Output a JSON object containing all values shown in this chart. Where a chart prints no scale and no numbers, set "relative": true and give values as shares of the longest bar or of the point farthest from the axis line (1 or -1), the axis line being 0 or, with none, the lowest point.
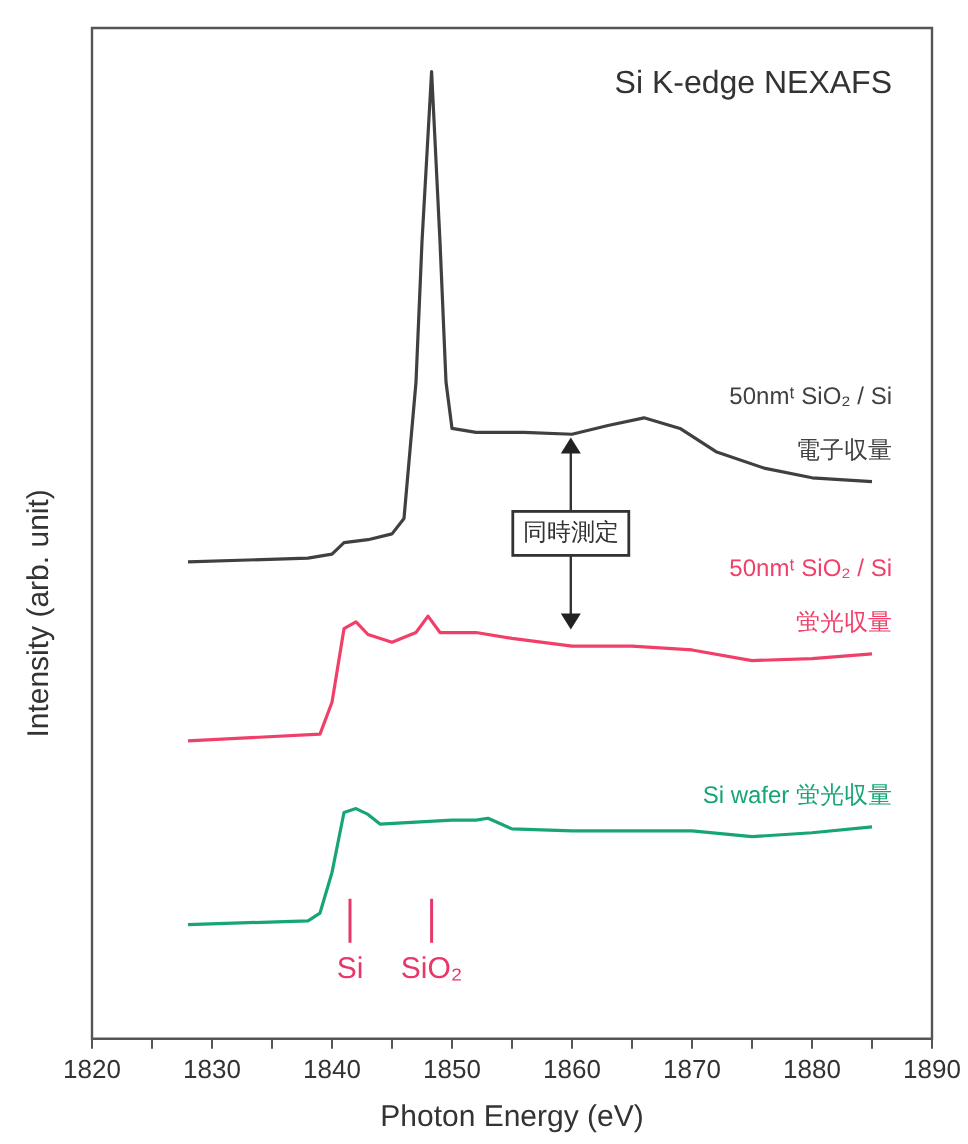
{
  "chart_data": {
    "type": "line",
    "relative": true,
    "title": "Si K-edge NEXAFS",
    "xlabel": "Photon Energy (eV)",
    "ylabel": "Intensity (arb. unit)",
    "xlim": [
      1820,
      1890
    ],
    "xticks": [
      1820,
      {
        "value": 1825,
        "label": null
      },
      1830,
      {
        "value": 1835,
        "label": null
      },
      1840,
      {
        "value": 1845,
        "label": null
      },
      1850,
      {
        "value": 1855,
        "label": null
      },
      1860,
      {
        "value": 1865,
        "label": null
      },
      1870,
      {
        "value": 1875,
        "label": null
      },
      1880,
      {
        "value": 1885,
        "label": null
      },
      1890
    ],
    "grid": false,
    "legend": false,
    "marker": "none",
    "line_style": "solid",
    "annotations": [
      "同時測定"
    ],
    "ref_lines": [
      {
        "axis": "x",
        "value": 1841.5,
        "label": "Si",
        "color": "#e8386a"
      },
      {
        "axis": "x",
        "value": 1848.3,
        "label": "SiO₂",
        "color": "#e8386a"
      }
    ],
    "series": [
      {
        "name": "50nmᵗ SiO₂ / Si\n電子収量",
        "color": "#404040",
        "x": [
          1828,
          1838,
          1840,
          1841,
          1843,
          1845,
          1846,
          1847,
          1847.5,
          1848.3,
          1849,
          1849.5,
          1850,
          1852,
          1856,
          1860,
          1863,
          1866,
          1869,
          1872,
          1876,
          1880,
          1885
        ],
        "values": [
          0.493,
          0.497,
          0.501,
          0.513,
          0.516,
          0.522,
          0.538,
          0.679,
          0.824,
          1.0,
          0.824,
          0.679,
          0.631,
          0.627,
          0.627,
          0.625,
          0.634,
          0.642,
          0.631,
          0.607,
          0.59,
          0.58,
          0.576
        ]
      },
      {
        "name": "50nmᵗ SiO₂ / Si\n蛍光収量",
        "color": "#f0406a",
        "x": [
          1828,
          1839,
          1840,
          1841,
          1842,
          1843,
          1845,
          1847,
          1848,
          1849,
          1851,
          1852,
          1855,
          1860,
          1865,
          1870,
          1875,
          1880,
          1885
        ],
        "values": [
          0.308,
          0.315,
          0.348,
          0.424,
          0.431,
          0.418,
          0.41,
          0.42,
          0.437,
          0.42,
          0.42,
          0.42,
          0.414,
          0.406,
          0.406,
          0.402,
          0.391,
          0.393,
          0.398
        ]
      },
      {
        "name": "Si wafer 蛍光収量",
        "color": "#17a673",
        "x": [
          1828,
          1838,
          1839,
          1840,
          1841,
          1842,
          1843,
          1844,
          1847,
          1850,
          1852,
          1853,
          1855,
          1860,
          1870,
          1875,
          1880,
          1885
        ],
        "values": [
          0.118,
          0.122,
          0.13,
          0.172,
          0.234,
          0.238,
          0.232,
          0.222,
          0.224,
          0.226,
          0.226,
          0.228,
          0.217,
          0.215,
          0.215,
          0.209,
          0.213,
          0.219
        ]
      }
    ]
  }
}
